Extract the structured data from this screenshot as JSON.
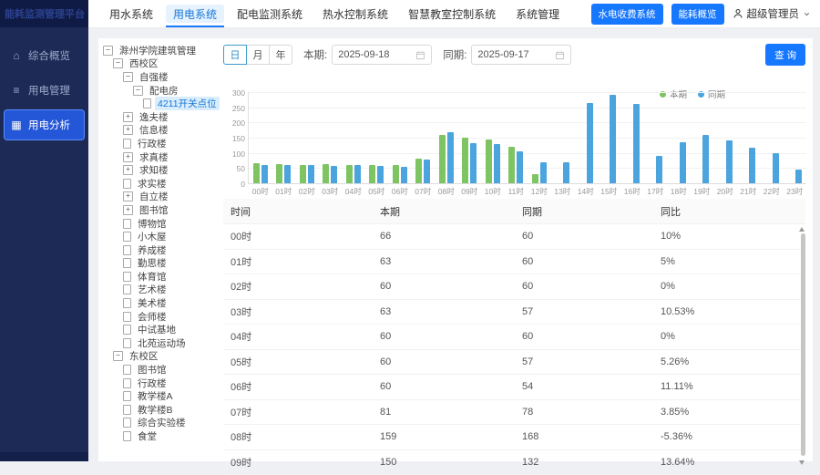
{
  "app": {
    "title": "能耗监测管理平台"
  },
  "sidebar": {
    "items": [
      {
        "key": "overview",
        "icon": "home-icon",
        "glyph": "⌂",
        "label": "综合概览",
        "active": false
      },
      {
        "key": "power-management",
        "icon": "list-icon",
        "glyph": "≡",
        "label": "用电管理",
        "active": false
      },
      {
        "key": "power-analysis",
        "icon": "grid-icon",
        "glyph": "▦",
        "label": "用电分析",
        "active": true
      }
    ]
  },
  "topbar": {
    "tabs": [
      {
        "key": "water-system",
        "label": "用水系统",
        "active": false
      },
      {
        "key": "power-system",
        "label": "用电系统",
        "active": true
      },
      {
        "key": "distribution-monitor",
        "label": "配电监测系统",
        "active": false
      },
      {
        "key": "hot-water-control",
        "label": "热水控制系统",
        "active": false
      },
      {
        "key": "smart-classroom-control",
        "label": "智慧教室控制系统",
        "active": false
      },
      {
        "key": "system-management",
        "label": "系统管理",
        "active": false
      }
    ],
    "actions": [
      {
        "key": "utility-billing-system",
        "label": "水电收费系统"
      },
      {
        "key": "energy-overview",
        "label": "能耗概览"
      }
    ],
    "user": {
      "name": "超级管理员"
    }
  },
  "tree": {
    "nodes": [
      {
        "label": "滁州学院建筑管理",
        "level": 0,
        "state": "expanded",
        "selected": false
      },
      {
        "label": "西校区",
        "level": 1,
        "state": "expanded",
        "selected": false
      },
      {
        "label": "自强楼",
        "level": 2,
        "state": "expanded",
        "selected": false
      },
      {
        "label": "配电房",
        "level": 3,
        "state": "expanded",
        "selected": false
      },
      {
        "label": "4211开关点位",
        "level": 4,
        "state": "leaf",
        "selected": true
      },
      {
        "label": "逸夫楼",
        "level": 2,
        "state": "collapsed",
        "selected": false
      },
      {
        "label": "信息楼",
        "level": 2,
        "state": "collapsed",
        "selected": false
      },
      {
        "label": "行政楼",
        "level": 2,
        "state": "leaf",
        "selected": false
      },
      {
        "label": "求真楼",
        "level": 2,
        "state": "collapsed",
        "selected": false
      },
      {
        "label": "求知楼",
        "level": 2,
        "state": "collapsed",
        "selected": false
      },
      {
        "label": "求实楼",
        "level": 2,
        "state": "leaf",
        "selected": false
      },
      {
        "label": "自立楼",
        "level": 2,
        "state": "collapsed",
        "selected": false
      },
      {
        "label": "图书馆",
        "level": 2,
        "state": "collapsed",
        "selected": false
      },
      {
        "label": "博物馆",
        "level": 2,
        "state": "leaf",
        "selected": false
      },
      {
        "label": "小木屋",
        "level": 2,
        "state": "leaf",
        "selected": false
      },
      {
        "label": "养成楼",
        "level": 2,
        "state": "leaf",
        "selected": false
      },
      {
        "label": "勤思楼",
        "level": 2,
        "state": "leaf",
        "selected": false
      },
      {
        "label": "体育馆",
        "level": 2,
        "state": "leaf",
        "selected": false
      },
      {
        "label": "艺术楼",
        "level": 2,
        "state": "leaf",
        "selected": false
      },
      {
        "label": "美术楼",
        "level": 2,
        "state": "leaf",
        "selected": false
      },
      {
        "label": "会师楼",
        "level": 2,
        "state": "leaf",
        "selected": false
      },
      {
        "label": "中试基地",
        "level": 2,
        "state": "leaf",
        "selected": false
      },
      {
        "label": "北苑运动场",
        "level": 2,
        "state": "leaf",
        "selected": false
      },
      {
        "label": "东校区",
        "level": 1,
        "state": "expanded",
        "selected": false
      },
      {
        "label": "图书馆",
        "level": 2,
        "state": "leaf",
        "selected": false
      },
      {
        "label": "行政楼",
        "level": 2,
        "state": "leaf",
        "selected": false
      },
      {
        "label": "教学楼A",
        "level": 2,
        "state": "leaf",
        "selected": false
      },
      {
        "label": "教学楼B",
        "level": 2,
        "state": "leaf",
        "selected": false
      },
      {
        "label": "综合实验楼",
        "level": 2,
        "state": "leaf",
        "selected": false
      },
      {
        "label": "食堂",
        "level": 2,
        "state": "leaf",
        "selected": false
      }
    ]
  },
  "toolbar": {
    "period_options": [
      {
        "key": "day",
        "label": "日",
        "active": true
      },
      {
        "key": "month",
        "label": "月",
        "active": false
      },
      {
        "key": "year",
        "label": "年",
        "active": false
      }
    ],
    "current_label": "本期:",
    "current_value": "2025-09-18",
    "compare_label": "同期:",
    "compare_value": "2025-09-17",
    "query_label": "查 询"
  },
  "chart_data": {
    "type": "bar",
    "title": "",
    "categories": [
      "00时",
      "01时",
      "02时",
      "03时",
      "04时",
      "05时",
      "06时",
      "07时",
      "08时",
      "09时",
      "10时",
      "11时",
      "12时",
      "13时",
      "14时",
      "15时",
      "16时",
      "17时",
      "18时",
      "19时",
      "20时",
      "21时",
      "22时",
      "23时"
    ],
    "series": [
      {
        "name": "本期",
        "color": "#7fc462",
        "values": [
          66,
          63,
          60,
          63,
          60,
          60,
          60,
          81,
          159,
          150,
          145,
          120,
          30,
          null,
          null,
          null,
          null,
          null,
          null,
          null,
          null,
          null,
          null,
          null
        ]
      },
      {
        "name": "同期",
        "color": "#4ba4de",
        "values": [
          60,
          60,
          60,
          57,
          60,
          57,
          54,
          78,
          168,
          132,
          130,
          105,
          70,
          70,
          265,
          290,
          260,
          90,
          135,
          160,
          140,
          117,
          99,
          45
        ]
      }
    ],
    "xlabel": "",
    "ylabel": "",
    "ylim": [
      0,
      300
    ],
    "yticks": [
      0,
      50,
      100,
      150,
      200,
      250,
      300
    ],
    "grid": true,
    "legend_position": "top-right"
  },
  "table": {
    "headers": [
      "时间",
      "本期",
      "同期",
      "同比"
    ],
    "rows": [
      [
        "00时",
        "66",
        "60",
        "10%"
      ],
      [
        "01时",
        "63",
        "60",
        "5%"
      ],
      [
        "02时",
        "60",
        "60",
        "0%"
      ],
      [
        "03时",
        "63",
        "57",
        "10.53%"
      ],
      [
        "04时",
        "60",
        "60",
        "0%"
      ],
      [
        "05时",
        "60",
        "57",
        "5.26%"
      ],
      [
        "06时",
        "60",
        "54",
        "11.11%"
      ],
      [
        "07时",
        "81",
        "78",
        "3.85%"
      ],
      [
        "08时",
        "159",
        "168",
        "-5.36%"
      ],
      [
        "09时",
        "150",
        "132",
        "13.64%"
      ]
    ]
  }
}
